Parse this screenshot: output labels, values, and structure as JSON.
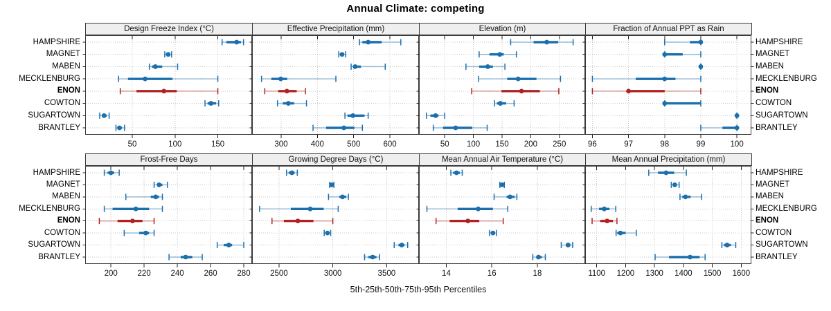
{
  "title": "Annual Climate: competing",
  "footer": "5th-25th-50th-75th-95th Percentiles",
  "chart_data": {
    "type": "dot-interval-trellis",
    "description": "Lattice of 8 climate-variable panels; each row shows 5th-25th-50th-75th-95th percentile intervals (thin line 5-95 with end caps, thick line 25-75, dot at median) per site.",
    "percentiles": [
      5,
      25,
      50,
      75,
      95
    ],
    "categories": [
      "HAMPSHIRE",
      "MAGNET",
      "MABEN",
      "MECKLENBURG",
      "ENON",
      "COWTON",
      "SUGARTOWN",
      "BRANTLEY"
    ],
    "highlight_category": "ENON",
    "grid": true,
    "colors": {
      "series": "#1b6fad",
      "highlight": "#b22222",
      "grid": "#c9c9c9",
      "strip_bg": "#efefef",
      "panel_border": "#3a3a3a",
      "tick": "#222222",
      "text": "#111111",
      "interval_light_opacity": 0.42
    },
    "panels": [
      {
        "strip_label": "Design Freeze Index (°C)",
        "grid_position": [
          0,
          0
        ],
        "xlim": [
          -5,
          190
        ],
        "ticks": [
          50,
          100,
          150
        ],
        "series": [
          {
            "name": "HAMPSHIRE",
            "p": [
              155,
              160,
              172,
              177,
              180
            ]
          },
          {
            "name": "MAGNET",
            "p": [
              88,
              90,
              92,
              94,
              96
            ]
          },
          {
            "name": "MABEN",
            "p": [
              70,
              73,
              77,
              85,
              103
            ]
          },
          {
            "name": "MECKLENBURG",
            "p": [
              34,
              45,
              65,
              97,
              150
            ]
          },
          {
            "name": "ENON",
            "p": [
              36,
              55,
              87,
              102,
              150
            ]
          },
          {
            "name": "COWTON",
            "p": [
              135,
              138,
              142,
              148,
              151
            ]
          },
          {
            "name": "SUGARTOWN",
            "p": [
              12,
              15,
              17,
              20,
              23
            ]
          },
          {
            "name": "BRANTLEY",
            "p": [
              31,
              33,
              35,
              38,
              41
            ]
          }
        ]
      },
      {
        "strip_label": "Effective Precipitation (mm)",
        "grid_position": [
          0,
          1
        ],
        "xlim": [
          220,
          680
        ],
        "ticks": [
          300,
          400,
          500,
          600
        ],
        "series": [
          {
            "name": "HAMPSHIRE",
            "p": [
              516,
              524,
              540,
              577,
              630
            ]
          },
          {
            "name": "MAGNET",
            "p": [
              459,
              464,
              468,
              472,
              478
            ]
          },
          {
            "name": "MABEN",
            "p": [
              493,
              498,
              504,
              520,
              587
            ]
          },
          {
            "name": "MECKLENBURG",
            "p": [
              246,
              273,
              299,
              317,
              451
            ]
          },
          {
            "name": "ENON",
            "p": [
              255,
              292,
              316,
              343,
              367
            ]
          },
          {
            "name": "COWTON",
            "p": [
              290,
              305,
              320,
              336,
              370
            ]
          },
          {
            "name": "SUGARTOWN",
            "p": [
              476,
              483,
              498,
              530,
              540
            ]
          },
          {
            "name": "BRANTLEY",
            "p": [
              388,
              424,
              473,
              502,
              524
            ]
          }
        ]
      },
      {
        "strip_label": "Elevation (m)",
        "grid_position": [
          0,
          2
        ],
        "xlim": [
          5,
          295
        ],
        "ticks": [
          50,
          100,
          150,
          200,
          250
        ],
        "series": [
          {
            "name": "HAMPSHIRE",
            "p": [
              165,
              205,
              228,
              248,
              274
            ]
          },
          {
            "name": "MAGNET",
            "p": [
              110,
              128,
              146,
              153,
              175
            ]
          },
          {
            "name": "MABEN",
            "p": [
              87,
              110,
              125,
              134,
              155
            ]
          },
          {
            "name": "MECKLENBURG",
            "p": [
              109,
              159,
              178,
              210,
              252
            ]
          },
          {
            "name": "ENON",
            "p": [
              97,
              149,
              184,
              216,
              249
            ]
          },
          {
            "name": "COWTON",
            "p": [
              137,
              141,
              147,
              157,
              171
            ]
          },
          {
            "name": "SUGARTOWN",
            "p": [
              18,
              25,
              34,
              39,
              50
            ]
          },
          {
            "name": "BRANTLEY",
            "p": [
              30,
              47,
              69,
              98,
              124
            ]
          }
        ]
      },
      {
        "strip_label": "Fraction of Annual PPT as Rain",
        "grid_position": [
          0,
          3
        ],
        "xlim": [
          95.8,
          100.4
        ],
        "ticks": [
          96,
          97,
          98,
          99,
          100
        ],
        "series": [
          {
            "name": "HAMPSHIRE",
            "p": [
              98,
              98.7,
              99,
              99,
              99
            ]
          },
          {
            "name": "MAGNET",
            "p": [
              98,
              98,
              98,
              98.5,
              99
            ]
          },
          {
            "name": "MABEN",
            "p": [
              99,
              99,
              99,
              99,
              99
            ]
          },
          {
            "name": "MECKLENBURG",
            "p": [
              96,
              97.2,
              98,
              98.3,
              99
            ]
          },
          {
            "name": "ENON",
            "p": [
              96,
              97,
              97,
              98,
              99
            ]
          },
          {
            "name": "COWTON",
            "p": [
              98,
              98,
              98,
              99,
              99
            ]
          },
          {
            "name": "SUGARTOWN",
            "p": [
              100,
              100,
              100,
              100,
              100
            ]
          },
          {
            "name": "BRANTLEY",
            "p": [
              99,
              99.6,
              100,
              100,
              100
            ]
          }
        ]
      },
      {
        "strip_label": "Frost-Free Days",
        "grid_position": [
          1,
          0
        ],
        "xlim": [
          184.5,
          285
        ],
        "ticks": [
          200,
          220,
          240,
          260,
          280
        ],
        "series": [
          {
            "name": "HAMPSHIRE",
            "p": [
              196,
              198,
              200,
              202,
              205
            ]
          },
          {
            "name": "MAGNET",
            "p": [
              226,
              228,
              229,
              231,
              234
            ]
          },
          {
            "name": "MABEN",
            "p": [
              209,
              224,
              227,
              229,
              231
            ]
          },
          {
            "name": "MECKLENBURG",
            "p": [
              196,
              201,
              215,
              223,
              231
            ]
          },
          {
            "name": "ENON",
            "p": [
              193,
              204,
              213,
              219,
              226
            ]
          },
          {
            "name": "COWTON",
            "p": [
              208,
              217,
              221,
              223,
              226
            ]
          },
          {
            "name": "SUGARTOWN",
            "p": [
              264,
              268,
              271,
              273,
              280
            ]
          },
          {
            "name": "BRANTLEY",
            "p": [
              235,
              242,
              245,
              249,
              255
            ]
          }
        ]
      },
      {
        "strip_label": "Growing Degree Days (°C)",
        "grid_position": [
          1,
          1
        ],
        "xlim": [
          2250,
          3800
        ],
        "ticks": [
          2500,
          3000,
          3500
        ],
        "series": [
          {
            "name": "HAMPSHIRE",
            "p": [
              2570,
              2590,
              2620,
              2645,
              2670
            ]
          },
          {
            "name": "MAGNET",
            "p": [
              2970,
              2985,
              2990,
              3000,
              3010
            ]
          },
          {
            "name": "MABEN",
            "p": [
              2960,
              3060,
              3090,
              3125,
              3145
            ]
          },
          {
            "name": "MECKLENBURG",
            "p": [
              2320,
              2610,
              2790,
              2915,
              3050
            ]
          },
          {
            "name": "ENON",
            "p": [
              2435,
              2545,
              2675,
              2820,
              3000
            ]
          },
          {
            "name": "COWTON",
            "p": [
              2920,
              2940,
              2950,
              2965,
              2980
            ]
          },
          {
            "name": "SUGARTOWN",
            "p": [
              3570,
              3610,
              3640,
              3665,
              3695
            ]
          },
          {
            "name": "BRANTLEY",
            "p": [
              3295,
              3330,
              3370,
              3405,
              3435
            ]
          }
        ]
      },
      {
        "strip_label": "Mean Annual Air Temperature (°C)",
        "grid_position": [
          1,
          2
        ],
        "xlim": [
          12.8,
          20.1
        ],
        "ticks": [
          14,
          16,
          18
        ],
        "series": [
          {
            "name": "HAMPSHIRE",
            "p": [
              14.2,
              14.3,
              14.45,
              14.6,
              14.7
            ]
          },
          {
            "name": "MAGNET",
            "p": [
              16.35,
              16.4,
              16.45,
              16.5,
              16.55
            ]
          },
          {
            "name": "MABEN",
            "p": [
              16.1,
              16.65,
              16.8,
              17.0,
              17.1
            ]
          },
          {
            "name": "MECKLENBURG",
            "p": [
              13.15,
              14.5,
              15.4,
              16.05,
              16.7
            ]
          },
          {
            "name": "ENON",
            "p": [
              13.55,
              14.15,
              14.95,
              15.45,
              16.5
            ]
          },
          {
            "name": "COWTON",
            "p": [
              15.9,
              16.0,
              16.05,
              16.1,
              16.2
            ]
          },
          {
            "name": "SUGARTOWN",
            "p": [
              19.05,
              19.25,
              19.35,
              19.45,
              19.55
            ]
          },
          {
            "name": "BRANTLEY",
            "p": [
              17.8,
              17.95,
              18.05,
              18.2,
              18.35
            ]
          }
        ]
      },
      {
        "strip_label": "Mean Annual Precipitation (mm)",
        "grid_position": [
          1,
          3
        ],
        "xlim": [
          1060,
          1635
        ],
        "ticks": [
          1100,
          1200,
          1300,
          1400,
          1500,
          1600
        ],
        "series": [
          {
            "name": "HAMPSHIRE",
            "p": [
              1280,
              1312,
              1340,
              1368,
              1410
            ]
          },
          {
            "name": "MAGNET",
            "p": [
              1358,
              1365,
              1370,
              1377,
              1385
            ]
          },
          {
            "name": "MABEN",
            "p": [
              1388,
              1396,
              1407,
              1425,
              1463
            ]
          },
          {
            "name": "MECKLENBURG",
            "p": [
              1081,
              1108,
              1126,
              1144,
              1166
            ]
          },
          {
            "name": "ENON",
            "p": [
              1084,
              1112,
              1136,
              1156,
              1170
            ]
          },
          {
            "name": "COWTON",
            "p": [
              1167,
              1171,
              1182,
              1200,
              1237
            ]
          },
          {
            "name": "SUGARTOWN",
            "p": [
              1533,
              1540,
              1551,
              1564,
              1581
            ]
          },
          {
            "name": "BRANTLEY",
            "p": [
              1302,
              1350,
              1423,
              1456,
              1475
            ]
          }
        ]
      }
    ]
  }
}
